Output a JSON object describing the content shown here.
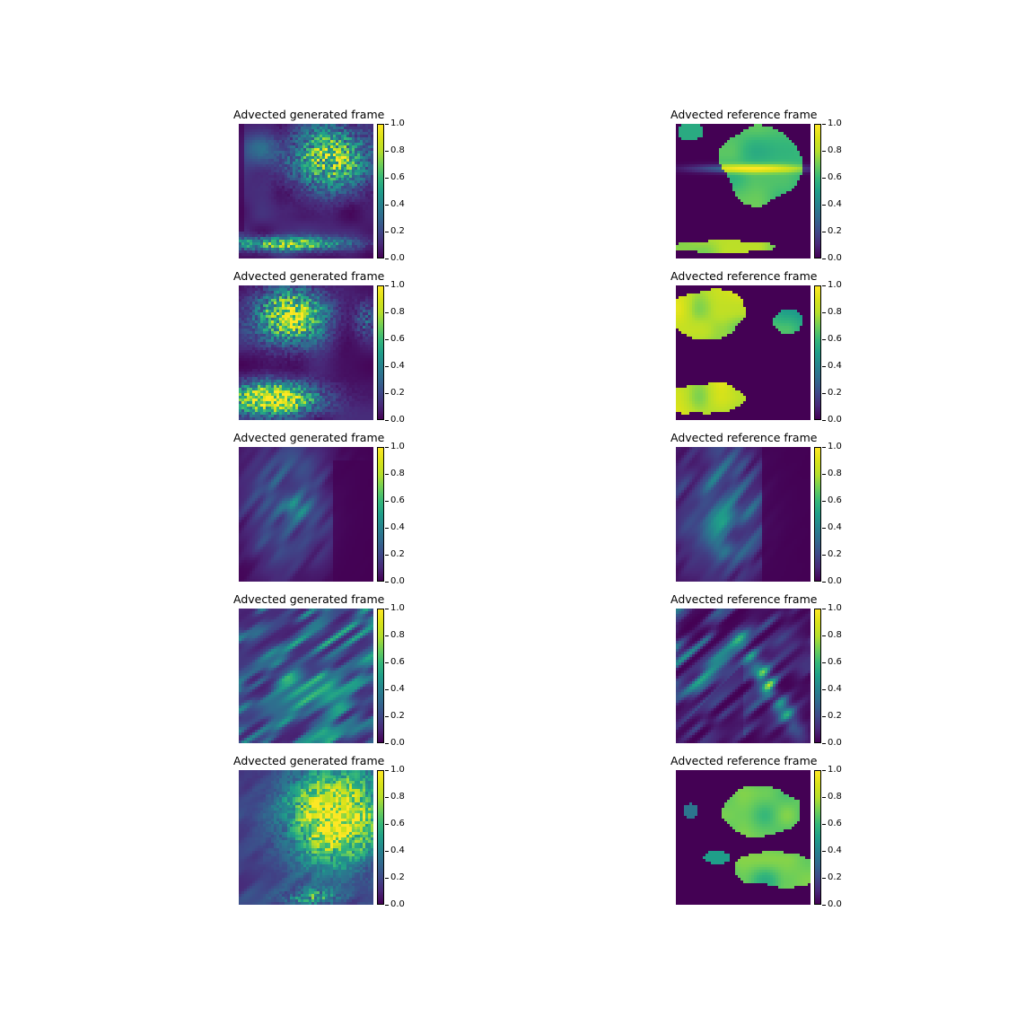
{
  "chart_data": [
    {
      "type": "heatmap",
      "title": "Advected generated frame",
      "colorbar": {
        "range": [
          0.0,
          1.0
        ],
        "ticks": [
          "0.0",
          "0.2",
          "0.4",
          "0.6",
          "0.8",
          "1.0"
        ],
        "colormap": "viridis"
      },
      "pattern": "gen_blob_top_right_band_bottom",
      "row": 0,
      "col": 0
    },
    {
      "type": "heatmap",
      "title": "Advected reference frame",
      "colorbar": {
        "range": [
          0.0,
          1.0
        ],
        "ticks": [
          "0.0",
          "0.2",
          "0.4",
          "0.6",
          "0.8",
          "1.0"
        ],
        "colormap": "viridis"
      },
      "pattern": "ref_blob_top_right_band_bottom",
      "row": 0,
      "col": 1
    },
    {
      "type": "heatmap",
      "title": "Advected generated frame",
      "colorbar": {
        "range": [
          0.0,
          1.0
        ],
        "ticks": [
          "0.0",
          "0.2",
          "0.4",
          "0.6",
          "0.8",
          "1.0"
        ],
        "colormap": "viridis"
      },
      "pattern": "gen_blob_top_left_band_bottom_left",
      "row": 1,
      "col": 0
    },
    {
      "type": "heatmap",
      "title": "Advected reference frame",
      "colorbar": {
        "range": [
          0.0,
          1.0
        ],
        "ticks": [
          "0.0",
          "0.2",
          "0.4",
          "0.6",
          "0.8",
          "1.0"
        ],
        "colormap": "viridis"
      },
      "pattern": "ref_blob_top_left_band_bottom_left",
      "row": 1,
      "col": 1
    },
    {
      "type": "heatmap",
      "title": "Advected generated frame",
      "colorbar": {
        "range": [
          0.0,
          1.0
        ],
        "ticks": [
          "0.0",
          "0.2",
          "0.4",
          "0.6",
          "0.8",
          "1.0"
        ],
        "colormap": "viridis"
      },
      "pattern": "gen_sparse_streaks",
      "row": 2,
      "col": 0
    },
    {
      "type": "heatmap",
      "title": "Advected reference frame",
      "colorbar": {
        "range": [
          0.0,
          1.0
        ],
        "ticks": [
          "0.0",
          "0.2",
          "0.4",
          "0.6",
          "0.8",
          "1.0"
        ],
        "colormap": "viridis"
      },
      "pattern": "ref_sparse_streaks",
      "row": 2,
      "col": 1
    },
    {
      "type": "heatmap",
      "title": "Advected generated frame",
      "colorbar": {
        "range": [
          0.0,
          1.0
        ],
        "ticks": [
          "0.0",
          "0.2",
          "0.4",
          "0.6",
          "0.8",
          "1.0"
        ],
        "colormap": "viridis"
      },
      "pattern": "gen_dense_streaks",
      "row": 3,
      "col": 0
    },
    {
      "type": "heatmap",
      "title": "Advected reference frame",
      "colorbar": {
        "range": [
          0.0,
          1.0
        ],
        "ticks": [
          "0.0",
          "0.2",
          "0.4",
          "0.6",
          "0.8",
          "1.0"
        ],
        "colormap": "viridis"
      },
      "pattern": "ref_diagonal_streaks",
      "row": 3,
      "col": 1
    },
    {
      "type": "heatmap",
      "title": "Advected generated frame",
      "colorbar": {
        "range": [
          0.0,
          1.0
        ],
        "ticks": [
          "0.0",
          "0.2",
          "0.4",
          "0.6",
          "0.8",
          "1.0"
        ],
        "colormap": "viridis"
      },
      "pattern": "gen_large_blob_top_right",
      "row": 4,
      "col": 0
    },
    {
      "type": "heatmap",
      "title": "Advected reference frame",
      "colorbar": {
        "range": [
          0.0,
          1.0
        ],
        "ticks": [
          "0.0",
          "0.2",
          "0.4",
          "0.6",
          "0.8",
          "1.0"
        ],
        "colormap": "viridis"
      },
      "pattern": "ref_large_blob_top_right",
      "row": 4,
      "col": 1
    }
  ]
}
